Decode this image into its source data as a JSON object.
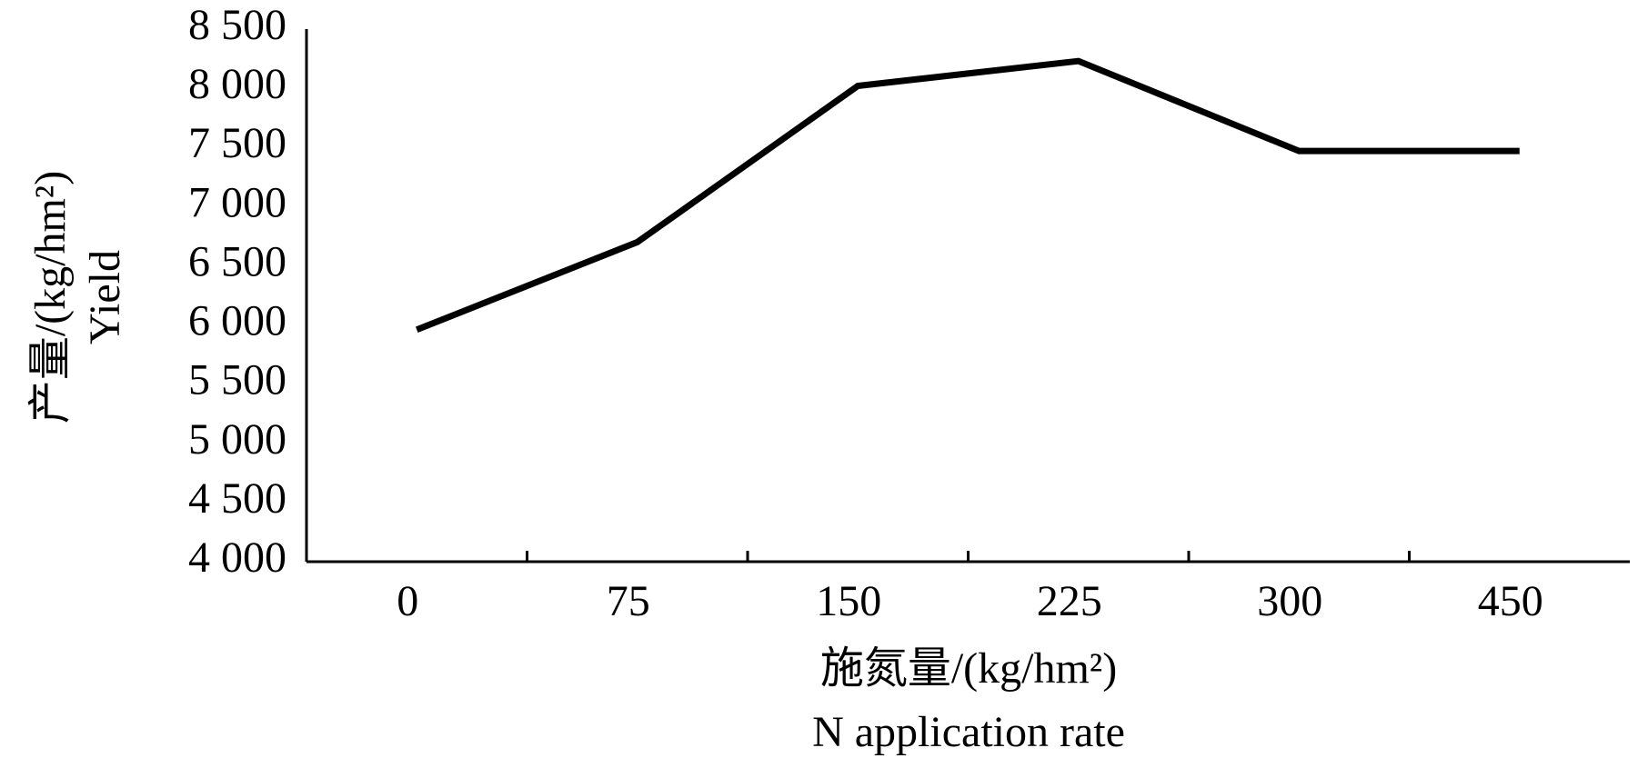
{
  "chart_data": {
    "type": "line",
    "y_label": [
      "产量/(kg/hm²)",
      "Yield"
    ],
    "x_label": [
      "施氮量/(kg/hm²)",
      "N application rate"
    ],
    "categories": [
      "0",
      "75",
      "150",
      "225",
      "300",
      "450"
    ],
    "series": [
      {
        "color": "#000000",
        "values": [
          5960,
          6700,
          8020,
          8230,
          7470,
          7470
        ]
      }
    ],
    "ylim": [
      4000,
      8500
    ],
    "yticks": [
      {
        "value": 4000,
        "label": "4 000"
      },
      {
        "value": 4500,
        "label": "4 500"
      },
      {
        "value": 5000,
        "label": "5 000"
      },
      {
        "value": 5500,
        "label": "5 500"
      },
      {
        "value": 6000,
        "label": "6 000"
      },
      {
        "value": 6500,
        "label": "6 500"
      },
      {
        "value": 7000,
        "label": "7 000"
      },
      {
        "value": 7500,
        "label": "7 500"
      },
      {
        "value": 8000,
        "label": "8 000"
      },
      {
        "value": 8500,
        "label": "8 500"
      }
    ],
    "grid": false
  }
}
